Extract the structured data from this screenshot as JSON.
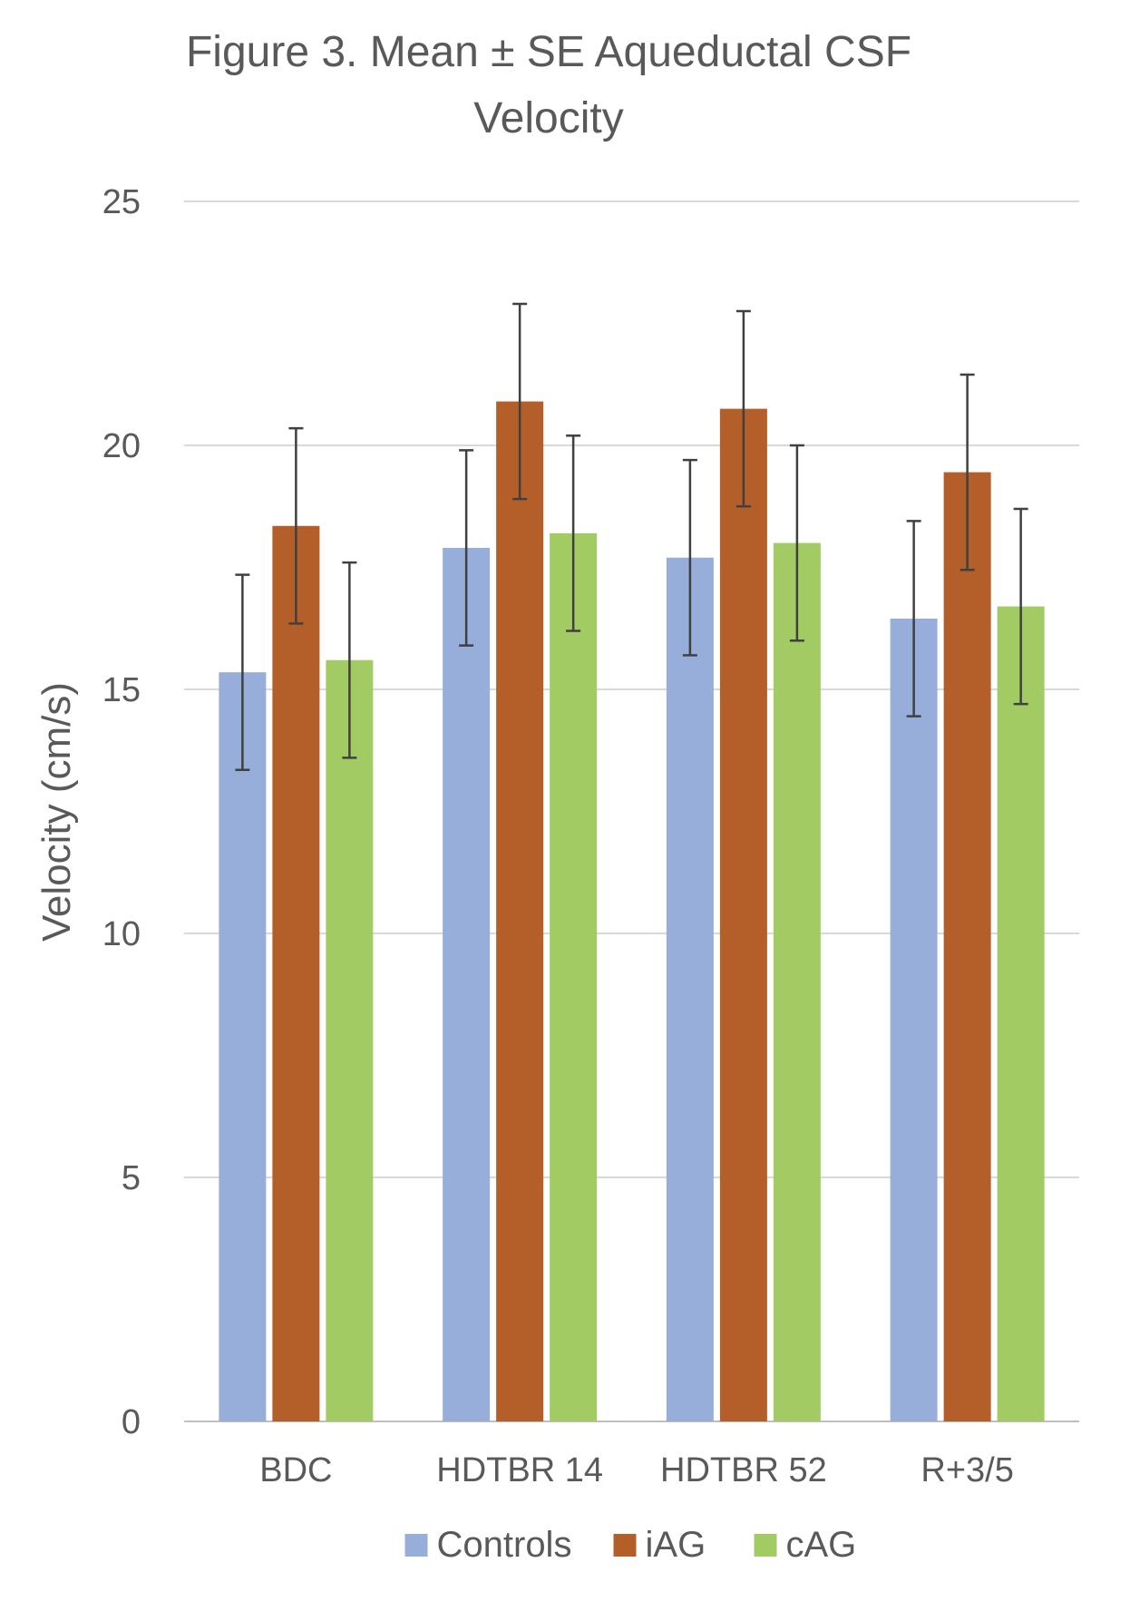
{
  "chart_data": {
    "type": "bar",
    "title_line1": "Figure 3. Mean ± SE Aqueductal CSF",
    "title_line2": "Velocity",
    "xlabel": "",
    "ylabel": "Velocity (cm/s)",
    "ylim": [
      0,
      25
    ],
    "yticks": [
      0,
      5,
      10,
      15,
      20,
      25
    ],
    "grid": true,
    "legend_position": "bottom",
    "categories": [
      "BDC",
      "HDTBR 14",
      "HDTBR 52",
      "R+3/5"
    ],
    "series": [
      {
        "name": "Controls",
        "color": "#97ADDA",
        "values": [
          15.35,
          17.9,
          17.7,
          16.45
        ],
        "errors": [
          2.0,
          2.0,
          2.0,
          2.0
        ]
      },
      {
        "name": "iAG",
        "color": "#B45F2A",
        "values": [
          18.35,
          20.9,
          20.75,
          19.45
        ],
        "errors": [
          2.0,
          2.0,
          2.0,
          2.0
        ]
      },
      {
        "name": "cAG",
        "color": "#A2CC63",
        "values": [
          15.6,
          18.2,
          18.0,
          16.7
        ],
        "errors": [
          2.0,
          2.0,
          2.0,
          2.0
        ]
      }
    ]
  }
}
